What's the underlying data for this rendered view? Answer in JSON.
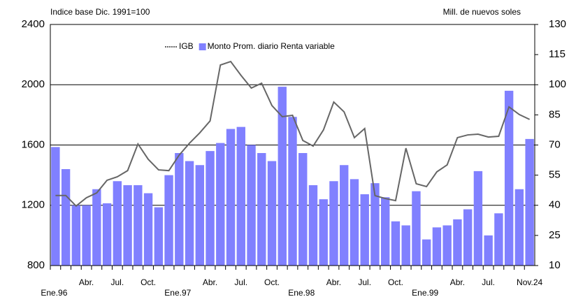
{
  "chart_data": {
    "type": "bar-line",
    "y_axis_label": "Indice base Dic. 1991=100",
    "y2_axis_label": "Mill. de nuevos soles",
    "categories": [
      "Ene.96",
      null,
      null,
      "Abr.",
      null,
      null,
      "Jul.",
      null,
      null,
      "Oct.",
      null,
      null,
      "Ene.97",
      null,
      null,
      "Abr.",
      null,
      null,
      "Jul.",
      null,
      null,
      "Oct.",
      null,
      null,
      "Ene.98",
      null,
      null,
      "Abr.",
      null,
      null,
      "Jul.",
      null,
      null,
      "Oct.",
      null,
      null,
      "Ene.99",
      null,
      null,
      "Abr.",
      null,
      null,
      "Jul.",
      null,
      null,
      null,
      "Nov.24"
    ],
    "series": [
      {
        "name": "IGB",
        "type": "line",
        "color": "#666666",
        "values": [
          1265,
          1265,
          1195,
          1250,
          1282,
          1366,
          1389,
          1430,
          1607,
          1505,
          1435,
          1430,
          1533,
          1612,
          1681,
          1760,
          2131,
          2154,
          2062,
          1978,
          2010,
          1862,
          1788,
          1797,
          1630,
          1593,
          1700,
          1885,
          1820,
          1649,
          1709,
          1264,
          1245,
          1231,
          1579,
          1343,
          1324,
          1422,
          1468,
          1649,
          1667,
          1672,
          1653,
          1658,
          1853,
          1802,
          1770
        ]
      },
      {
        "name": "Monto Prom. diario Renta variable",
        "type": "bar",
        "axis": "y2",
        "color": "#8080ff",
        "values": [
          69,
          58,
          40,
          40,
          48,
          41,
          52,
          50,
          50,
          46,
          39,
          55,
          66,
          62,
          60,
          67,
          71,
          78,
          79,
          70,
          66,
          62,
          99,
          84,
          66,
          50,
          43,
          52,
          60,
          53,
          45.5,
          51,
          44,
          32,
          30,
          47,
          23,
          29,
          30,
          33,
          38,
          57,
          25,
          36,
          97,
          48,
          73
        ]
      }
    ],
    "ylim": [
      800,
      2400
    ],
    "yticks": [
      800,
      1200,
      1600,
      2000,
      2400
    ],
    "y2lim": [
      10,
      130
    ],
    "y2ticks": [
      10,
      25,
      40,
      55,
      70,
      85,
      100,
      115,
      130
    ],
    "grid": true,
    "legend": "top-center"
  }
}
